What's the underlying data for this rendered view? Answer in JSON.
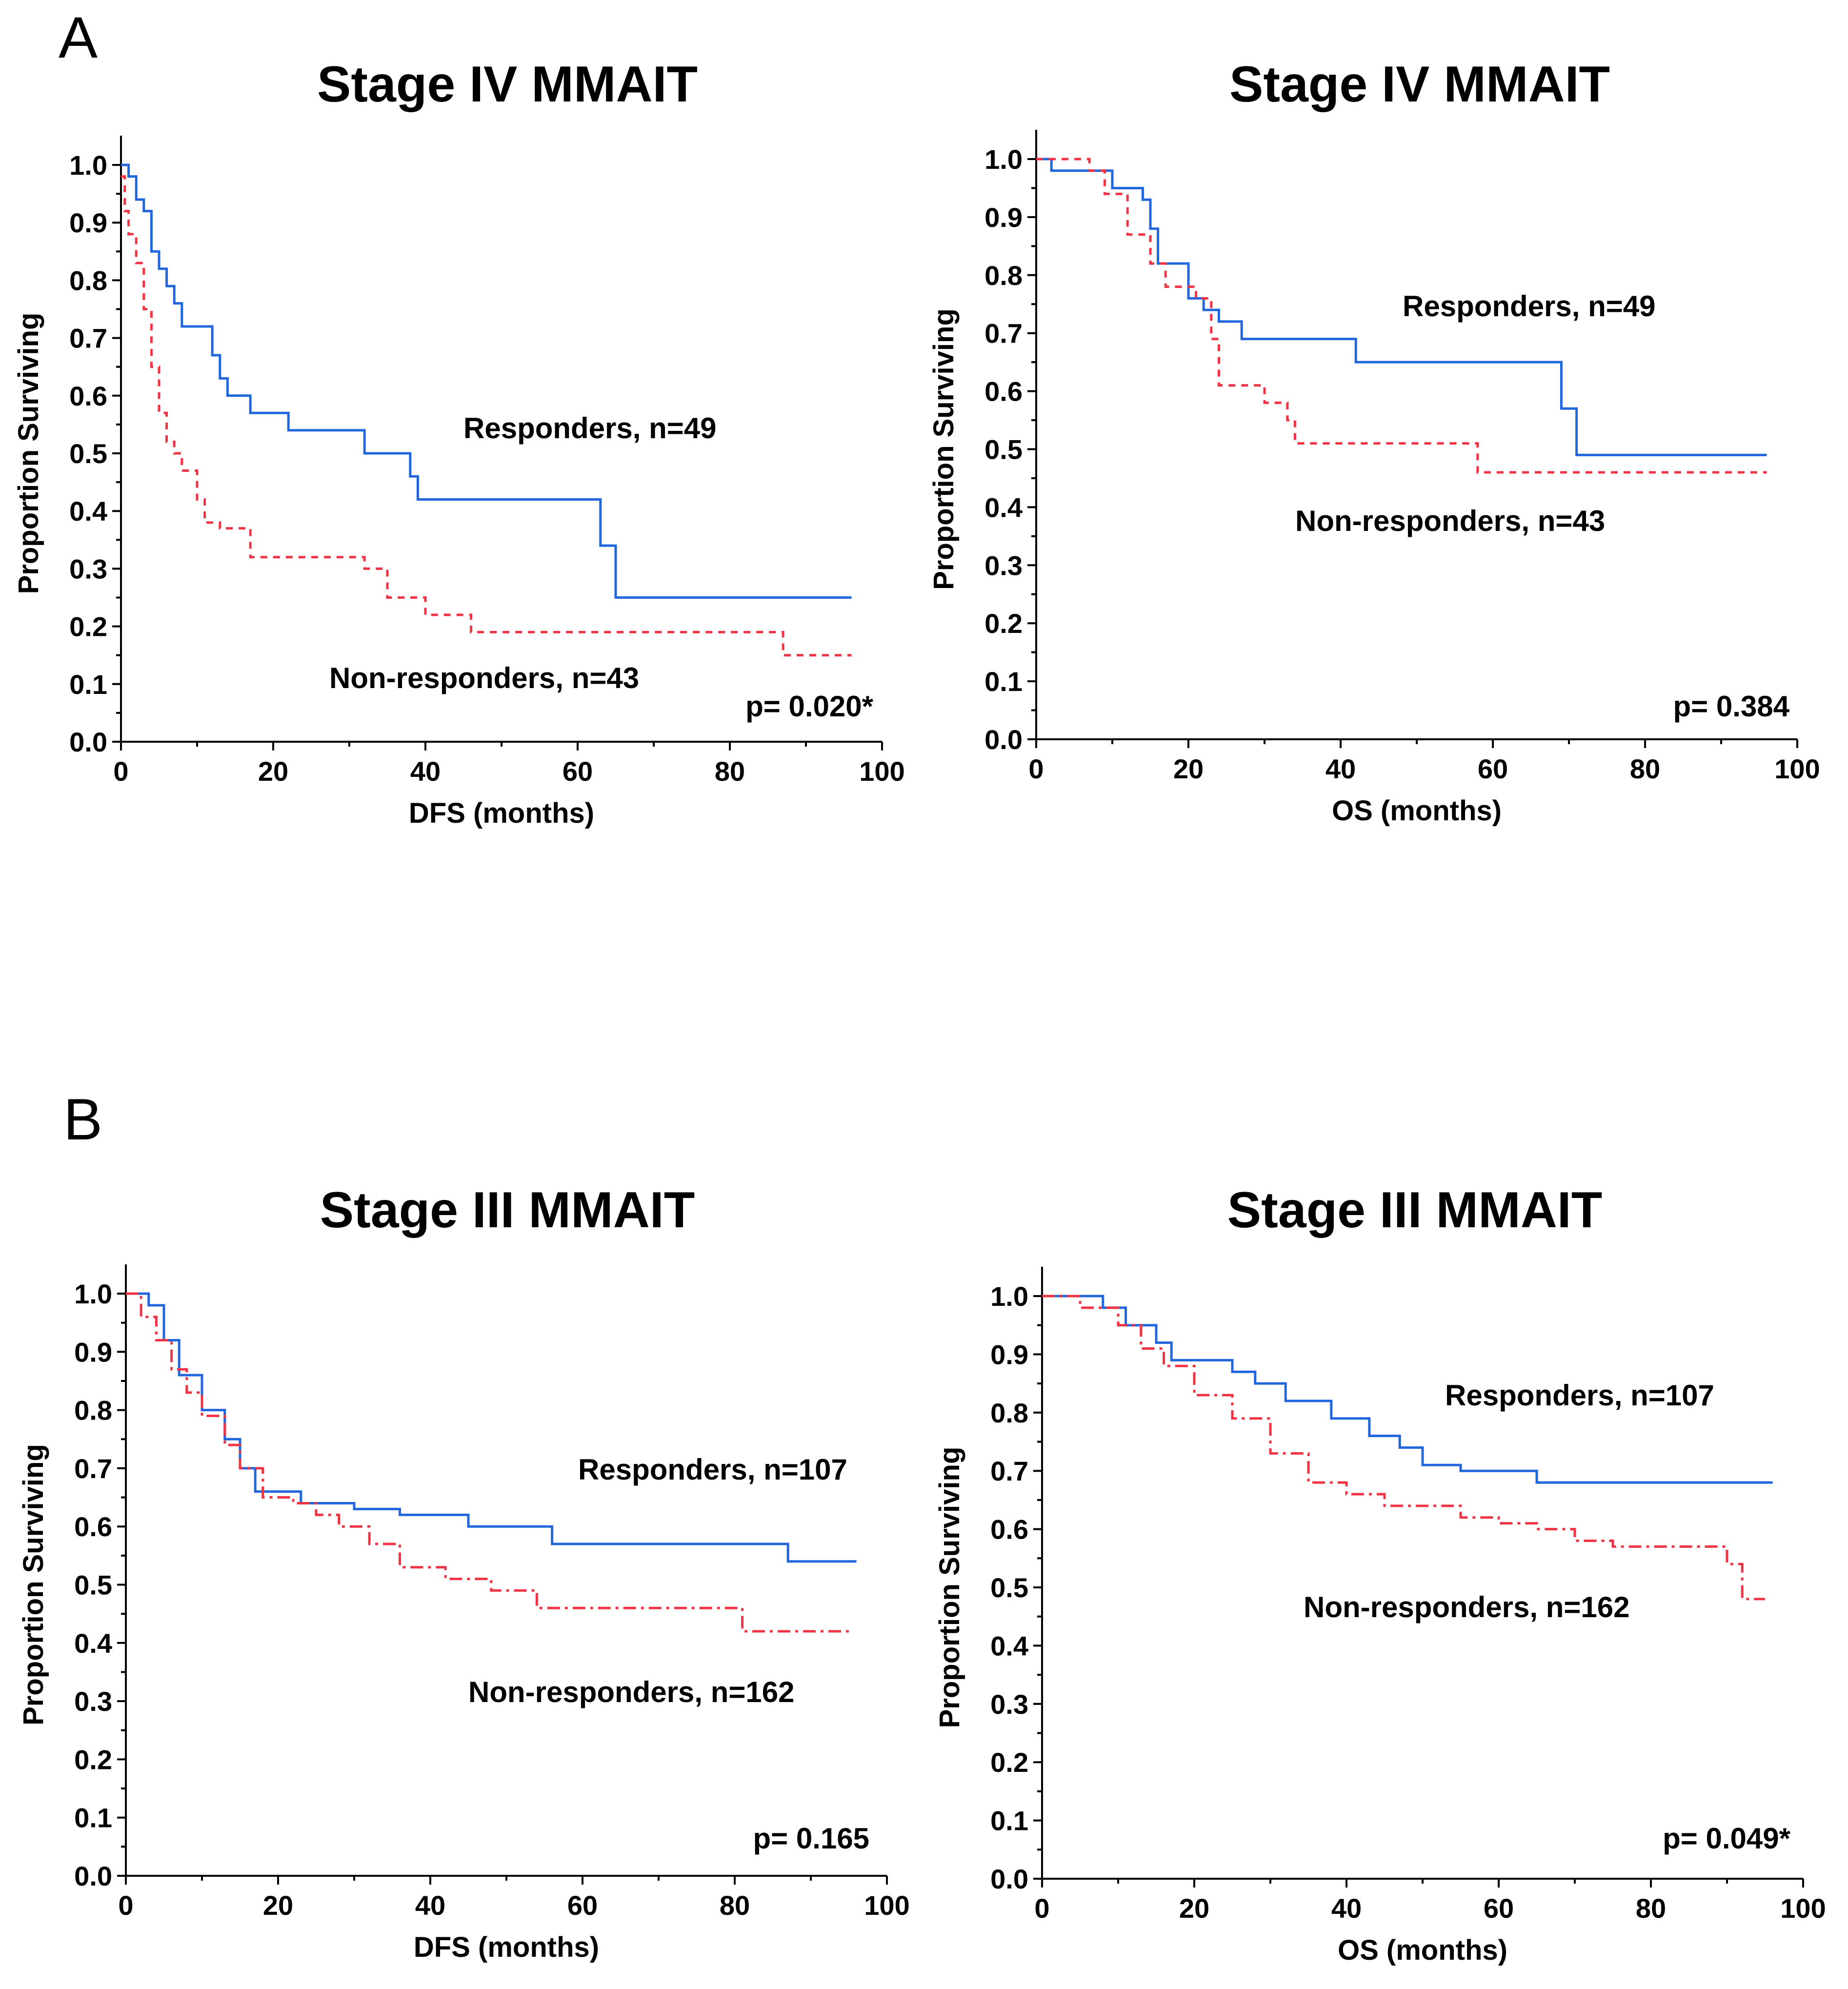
{
  "colors": {
    "responders": "#2266dd",
    "non_responders": "#ee3344",
    "axis": "#000000"
  },
  "chart_data": [
    {
      "id": "A-left",
      "type": "line",
      "panel_letter": "A",
      "title": "Stage IV MMAIT",
      "xlabel": "DFS (months)",
      "ylabel": "Proportion Surviving",
      "xlim": [
        0,
        100
      ],
      "ylim": [
        0,
        1
      ],
      "xticks": [
        "0",
        "20",
        "40",
        "60",
        "80",
        "100"
      ],
      "yticks": [
        "0.0",
        "0.1",
        "0.2",
        "0.3",
        "0.4",
        "0.5",
        "0.6",
        "0.7",
        "0.8",
        "0.9",
        "1.0"
      ],
      "p_value": "p= 0.020*",
      "series": [
        {
          "name": "Responders, n=49",
          "style": "solid",
          "x": [
            0,
            1,
            2,
            3,
            4,
            5,
            6,
            7,
            8,
            12,
            13,
            14,
            17,
            22,
            32,
            38,
            39,
            63,
            65,
            96
          ],
          "values": [
            1.0,
            0.98,
            0.94,
            0.92,
            0.85,
            0.82,
            0.79,
            0.76,
            0.72,
            0.67,
            0.63,
            0.6,
            0.57,
            0.54,
            0.5,
            0.46,
            0.42,
            0.34,
            0.25,
            0.25
          ]
        },
        {
          "name": "Non-responders, n=43",
          "style": "dotted",
          "x": [
            0,
            0.5,
            1,
            2,
            3,
            4,
            5,
            6,
            7,
            8,
            10,
            11,
            12,
            13,
            17,
            32,
            35,
            40,
            46,
            87,
            96
          ],
          "values": [
            0.98,
            0.92,
            0.88,
            0.83,
            0.75,
            0.65,
            0.57,
            0.52,
            0.5,
            0.47,
            0.42,
            0.38,
            0.38,
            0.37,
            0.32,
            0.3,
            0.25,
            0.22,
            0.19,
            0.15,
            0.15
          ]
        }
      ]
    },
    {
      "id": "A-right",
      "type": "line",
      "title": "Stage IV MMAIT",
      "xlabel": "OS (months)",
      "ylabel": "Proportion Surviving",
      "xlim": [
        0,
        100
      ],
      "ylim": [
        0,
        1
      ],
      "xticks": [
        "0",
        "20",
        "40",
        "60",
        "80",
        "100"
      ],
      "yticks": [
        "0.0",
        "0.1",
        "0.2",
        "0.3",
        "0.4",
        "0.5",
        "0.6",
        "0.7",
        "0.8",
        "0.9",
        "1.0"
      ],
      "p_value": "p= 0.384",
      "series": [
        {
          "name": "Responders, n=49",
          "style": "solid",
          "x": [
            0,
            2,
            10,
            14,
            15,
            16,
            20,
            22,
            24,
            27,
            42,
            69,
            71,
            96
          ],
          "values": [
            1.0,
            0.98,
            0.95,
            0.93,
            0.88,
            0.82,
            0.76,
            0.74,
            0.72,
            0.69,
            0.65,
            0.57,
            0.49,
            0.49
          ]
        },
        {
          "name": "Non-responders, n=43",
          "style": "dotted",
          "x": [
            0,
            7,
            9,
            12,
            15,
            17,
            21,
            23,
            24,
            30,
            33,
            34,
            58,
            96
          ],
          "values": [
            1.0,
            0.98,
            0.94,
            0.87,
            0.82,
            0.78,
            0.76,
            0.69,
            0.61,
            0.58,
            0.55,
            0.51,
            0.46,
            0.46
          ]
        }
      ]
    },
    {
      "id": "B-left",
      "type": "line",
      "panel_letter": "B",
      "title": "Stage III MMAIT",
      "xlabel": "DFS (months)",
      "ylabel": "Proportion Surviving",
      "xlim": [
        0,
        100
      ],
      "ylim": [
        0,
        1
      ],
      "xticks": [
        "0",
        "20",
        "40",
        "60",
        "80",
        "100"
      ],
      "yticks": [
        "0.0",
        "0.1",
        "0.2",
        "0.3",
        "0.4",
        "0.5",
        "0.6",
        "0.7",
        "0.8",
        "0.9",
        "1.0"
      ],
      "p_value": "p= 0.165",
      "series": [
        {
          "name": "Responders, n=107",
          "style": "solid",
          "x": [
            0,
            3,
            5,
            7,
            10,
            13,
            15,
            17,
            18,
            23,
            30,
            36,
            45,
            56,
            87,
            96
          ],
          "values": [
            1.0,
            0.98,
            0.92,
            0.86,
            0.8,
            0.75,
            0.7,
            0.66,
            0.66,
            0.64,
            0.63,
            0.62,
            0.6,
            0.57,
            0.54,
            0.54
          ]
        },
        {
          "name": "Non-responders, n=162",
          "style": "dashdot",
          "x": [
            0,
            2,
            4,
            6,
            8,
            10,
            13,
            15,
            18,
            22,
            25,
            28,
            32,
            36,
            42,
            48,
            54,
            58,
            70,
            80,
            81,
            95
          ],
          "values": [
            1.0,
            0.96,
            0.92,
            0.87,
            0.83,
            0.79,
            0.74,
            0.7,
            0.65,
            0.64,
            0.62,
            0.6,
            0.57,
            0.53,
            0.51,
            0.49,
            0.46,
            0.46,
            0.46,
            0.46,
            0.42,
            0.42
          ]
        }
      ]
    },
    {
      "id": "B-right",
      "type": "line",
      "title": "Stage III MMAIT",
      "xlabel": "OS (months)",
      "ylabel": "Proportion Surviving",
      "xlim": [
        0,
        100
      ],
      "ylim": [
        0,
        1
      ],
      "xticks": [
        "0",
        "20",
        "40",
        "60",
        "80",
        "100"
      ],
      "yticks": [
        "0.0",
        "0.1",
        "0.2",
        "0.3",
        "0.4",
        "0.5",
        "0.6",
        "0.7",
        "0.8",
        "0.9",
        "1.0"
      ],
      "p_value": "p= 0.049*",
      "series": [
        {
          "name": "Responders, n=107",
          "style": "solid",
          "x": [
            0,
            8,
            11,
            15,
            17,
            25,
            28,
            32,
            38,
            43,
            47,
            50,
            55,
            65,
            96
          ],
          "values": [
            1.0,
            0.98,
            0.95,
            0.92,
            0.89,
            0.87,
            0.85,
            0.82,
            0.79,
            0.76,
            0.74,
            0.71,
            0.7,
            0.68,
            0.68
          ]
        },
        {
          "name": "Non-responders, n=162",
          "style": "dashdot",
          "x": [
            0,
            5,
            10,
            13,
            16,
            20,
            25,
            30,
            35,
            40,
            45,
            50,
            55,
            60,
            65,
            70,
            75,
            80,
            85,
            90,
            92,
            95
          ],
          "values": [
            1.0,
            0.98,
            0.95,
            0.91,
            0.88,
            0.83,
            0.79,
            0.73,
            0.68,
            0.66,
            0.64,
            0.64,
            0.62,
            0.61,
            0.6,
            0.58,
            0.57,
            0.57,
            0.57,
            0.54,
            0.48,
            0.48
          ]
        }
      ]
    }
  ]
}
